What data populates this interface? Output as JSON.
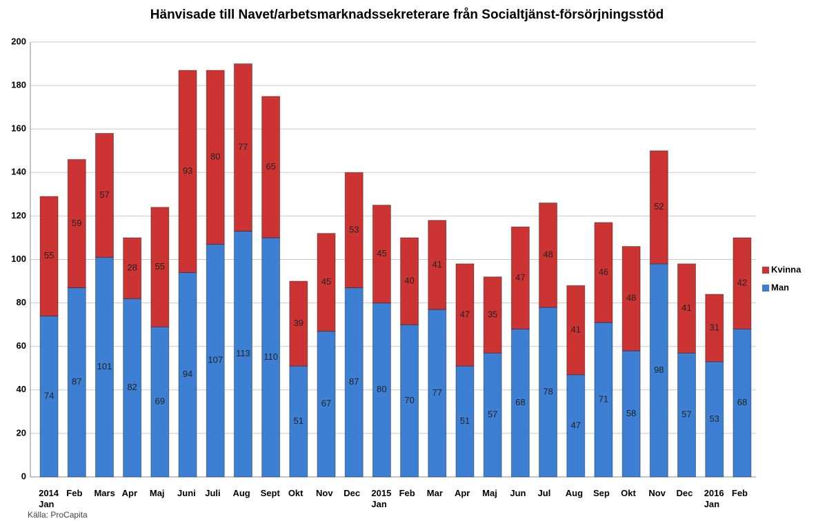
{
  "chart_data": {
    "type": "stacked_bar",
    "title": "Hänvisade till Navet/arbetsmarknadssekreterare från Socialtjänst-försörjningsstöd",
    "source": "Källa: ProCapita",
    "categories": [
      "2014\nJan",
      "Feb",
      "Mars",
      "Apr",
      "Maj",
      "Juni",
      "Juli",
      "Aug",
      "Sept",
      "Okt",
      "Nov",
      "Dec",
      "2015\nJan",
      "Feb",
      "Mar",
      "Apr",
      "Maj",
      "Jun",
      "Jul",
      "Aug",
      "Sep",
      "Okt",
      "Nov",
      "Dec",
      "2016\nJan",
      "Feb"
    ],
    "series": [
      {
        "name": "Man",
        "color": "#3d7fd3",
        "values": [
          74,
          87,
          101,
          82,
          69,
          94,
          107,
          113,
          110,
          51,
          67,
          87,
          80,
          70,
          77,
          51,
          57,
          68,
          78,
          47,
          71,
          58,
          98,
          57,
          53,
          68
        ]
      },
      {
        "name": "Kvinna",
        "color": "#cc3333",
        "values": [
          55,
          59,
          57,
          28,
          55,
          93,
          80,
          77,
          65,
          39,
          45,
          53,
          45,
          40,
          41,
          47,
          35,
          47,
          48,
          41,
          46,
          48,
          52,
          41,
          31,
          42
        ]
      }
    ],
    "ylim": [
      0,
      200
    ],
    "yticks": [
      0,
      20,
      40,
      60,
      80,
      100,
      120,
      140,
      160,
      180,
      200
    ],
    "grid": true,
    "legend": "right"
  }
}
